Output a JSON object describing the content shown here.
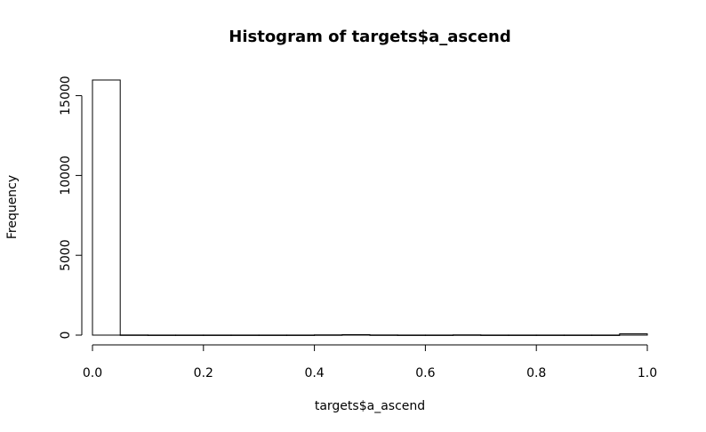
{
  "chart_data": {
    "type": "bar",
    "title": "Histogram of targets$a_ascend",
    "xlabel": "targets$a_ascend",
    "ylabel": "Frequency",
    "xlim": [
      0,
      1
    ],
    "ylim": [
      0,
      16000
    ],
    "x_ticks": [
      "0.0",
      "0.2",
      "0.4",
      "0.6",
      "0.8",
      "1.0"
    ],
    "y_ticks": [
      "0",
      "5000",
      "10000",
      "15000"
    ],
    "bins": [
      {
        "x0": 0.0,
        "x1": 0.05,
        "count": 15980
      },
      {
        "x0": 0.05,
        "x1": 0.1,
        "count": 10
      },
      {
        "x0": 0.1,
        "x1": 0.15,
        "count": 5
      },
      {
        "x0": 0.15,
        "x1": 0.2,
        "count": 5
      },
      {
        "x0": 0.2,
        "x1": 0.25,
        "count": 5
      },
      {
        "x0": 0.25,
        "x1": 0.3,
        "count": 5
      },
      {
        "x0": 0.3,
        "x1": 0.35,
        "count": 5
      },
      {
        "x0": 0.35,
        "x1": 0.4,
        "count": 5
      },
      {
        "x0": 0.4,
        "x1": 0.45,
        "count": 15
      },
      {
        "x0": 0.45,
        "x1": 0.5,
        "count": 30
      },
      {
        "x0": 0.5,
        "x1": 0.55,
        "count": 10
      },
      {
        "x0": 0.55,
        "x1": 0.6,
        "count": 5
      },
      {
        "x0": 0.6,
        "x1": 0.65,
        "count": 5
      },
      {
        "x0": 0.65,
        "x1": 0.7,
        "count": 15
      },
      {
        "x0": 0.7,
        "x1": 0.75,
        "count": 5
      },
      {
        "x0": 0.75,
        "x1": 0.8,
        "count": 5
      },
      {
        "x0": 0.8,
        "x1": 0.85,
        "count": 5
      },
      {
        "x0": 0.85,
        "x1": 0.9,
        "count": 5
      },
      {
        "x0": 0.9,
        "x1": 0.95,
        "count": 5
      },
      {
        "x0": 0.95,
        "x1": 1.0,
        "count": 80
      }
    ],
    "grid": false,
    "legend": "none"
  }
}
